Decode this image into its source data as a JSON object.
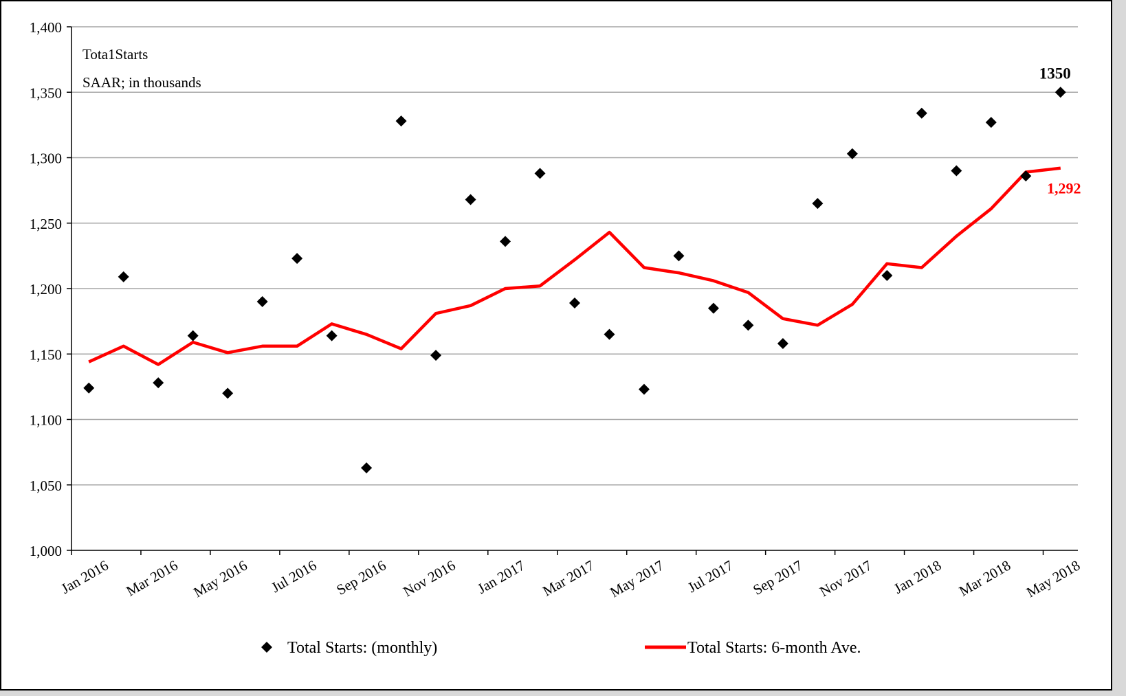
{
  "chart_data": {
    "type": "scatter",
    "annotation_lines": [
      "Tota1Starts",
      "SAAR; in thousands"
    ],
    "ylim": [
      1000,
      1400
    ],
    "y_ticks": [
      1000,
      1050,
      1100,
      1150,
      1200,
      1250,
      1300,
      1350,
      1400
    ],
    "y_tick_labels": [
      "1,000",
      "1,050",
      "1,100",
      "1,150",
      "1,200",
      "1,250",
      "1,300",
      "1,350",
      "1,400"
    ],
    "x_tick_labels": [
      "Jan 2016",
      "Mar 2016",
      "May 2016",
      "Jul 2016",
      "Sep 2016",
      "Nov 2016",
      "Jan 2017",
      "Mar 2017",
      "May 2017",
      "Jul 2017",
      "Sep 2017",
      "Nov 2017",
      "Jan 2018",
      "Mar 2018",
      "May 2018"
    ],
    "grid": "horizontal",
    "legend_placement": "bottom",
    "series": [
      {
        "name": "Total Starts: (monthly)",
        "kind": "scatter",
        "marker": "diamond",
        "color": "#000000",
        "values": [
          1124,
          1209,
          1128,
          1164,
          1120,
          1190,
          1223,
          1164,
          1063,
          1328,
          1149,
          1268,
          1236,
          1288,
          1189,
          1165,
          1123,
          1225,
          1185,
          1172,
          1158,
          1265,
          1303,
          1210,
          1334,
          1290,
          1327,
          1286,
          1350
        ]
      },
      {
        "name": "Total Starts: 6-month Ave.",
        "kind": "line",
        "color": "#ff0000",
        "values": [
          1144,
          1156,
          1142,
          1159,
          1151,
          1156,
          1156,
          1173,
          1165,
          1154,
          1181,
          1187,
          1200,
          1202,
          1222,
          1243,
          1216,
          1212,
          1206,
          1197,
          1177,
          1172,
          1188,
          1219,
          1216,
          1240,
          1261,
          1289,
          1292
        ]
      }
    ],
    "point_labels": [
      {
        "series": 0,
        "index": 28,
        "text": "1350",
        "color": "#000000"
      },
      {
        "series": 1,
        "index": 28,
        "text": "1,292",
        "color": "#ff0000"
      }
    ]
  }
}
